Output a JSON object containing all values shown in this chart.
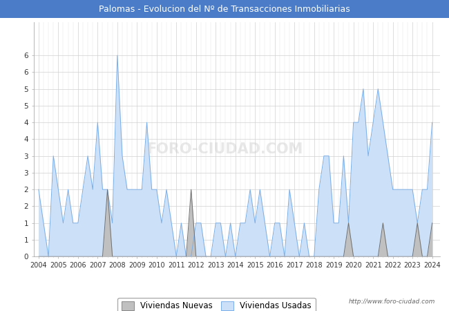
{
  "title": "Palomas - Evolucion del Nº de Transacciones Inmobiliarias",
  "title_bg_color": "#4a7cc7",
  "title_text_color": "#ffffff",
  "url_text": "http://www.foro-ciudad.com",
  "legend_label_nuevas": "Viviendas Nuevas",
  "legend_label_usadas": "Viviendas Usadas",
  "color_nuevas_fill": "#c0c0c0",
  "color_nuevas_line": "#707070",
  "color_usadas_fill": "#cce0f8",
  "color_usadas_line": "#7aaee8",
  "start_year": 2004,
  "end_year": 2024,
  "nuevas": [
    0,
    0,
    0,
    0,
    0,
    0,
    0,
    0,
    0,
    0,
    0,
    0,
    0,
    0,
    2,
    0,
    0,
    0,
    0,
    0,
    0,
    0,
    0,
    0,
    0,
    0,
    0,
    0,
    0,
    0,
    0,
    2,
    0,
    0,
    0,
    0,
    0,
    0,
    0,
    0,
    0,
    0,
    0,
    0,
    0,
    0,
    0,
    0,
    0,
    0,
    0,
    0,
    0,
    0,
    0,
    0,
    0,
    0,
    0,
    0,
    0,
    0,
    0,
    1,
    0,
    0,
    0,
    0,
    0,
    0,
    1,
    0,
    0,
    0,
    0,
    0,
    0,
    1,
    0,
    0,
    1,
    0
  ],
  "usadas": [
    2,
    1,
    0,
    3,
    2,
    1,
    2,
    1,
    1,
    2,
    3,
    2,
    4,
    2,
    2,
    1,
    6,
    3,
    2,
    2,
    2,
    2,
    4,
    2,
    2,
    1,
    2,
    1,
    0,
    1,
    0,
    0,
    1,
    1,
    0,
    0,
    1,
    1,
    0,
    1,
    0,
    1,
    1,
    2,
    1,
    2,
    1,
    0,
    1,
    1,
    0,
    2,
    1,
    0,
    1,
    0,
    0,
    2,
    3,
    3,
    1,
    1,
    3,
    1,
    4,
    4,
    5,
    3,
    4,
    5,
    4,
    3,
    2,
    2,
    2,
    2,
    2,
    1,
    2,
    2,
    4,
    2
  ]
}
